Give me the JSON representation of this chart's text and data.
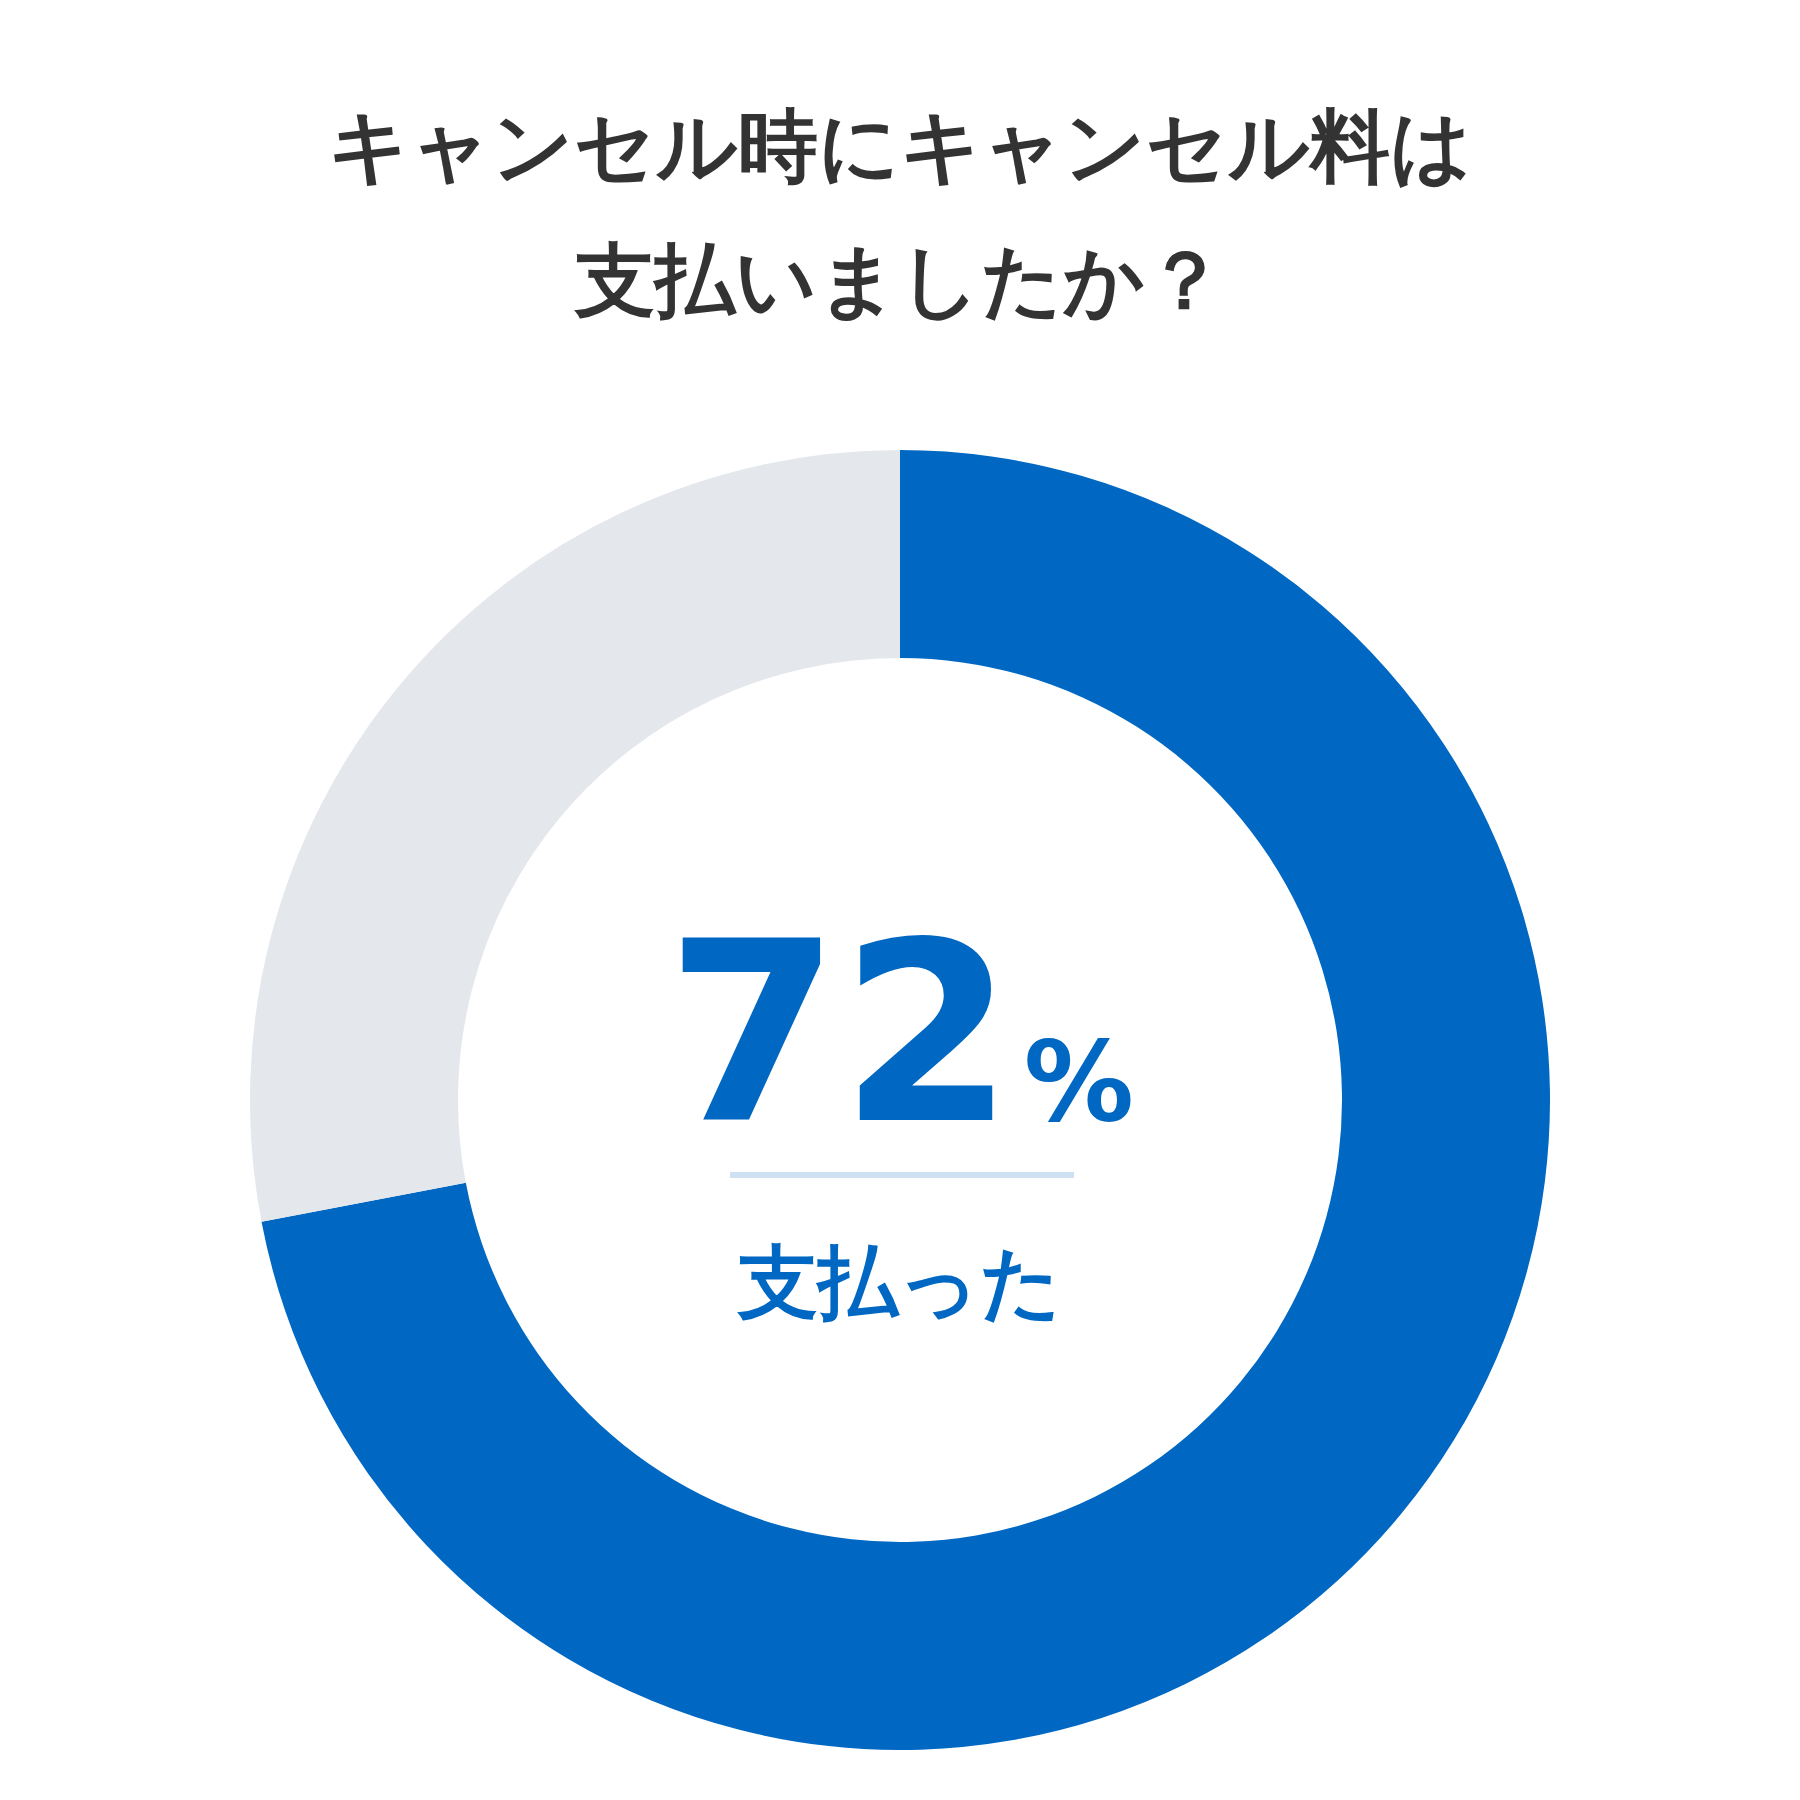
{
  "chart_data": {
    "type": "donut",
    "title": "キャンセル時にキャンセル料は支払いましたか？",
    "categories": [
      "支払った",
      null
    ],
    "values": [
      72,
      28
    ],
    "colors": [
      "#0068c2",
      "#e4e7ec"
    ],
    "value_labels": [
      "72%",
      null
    ]
  }
}
